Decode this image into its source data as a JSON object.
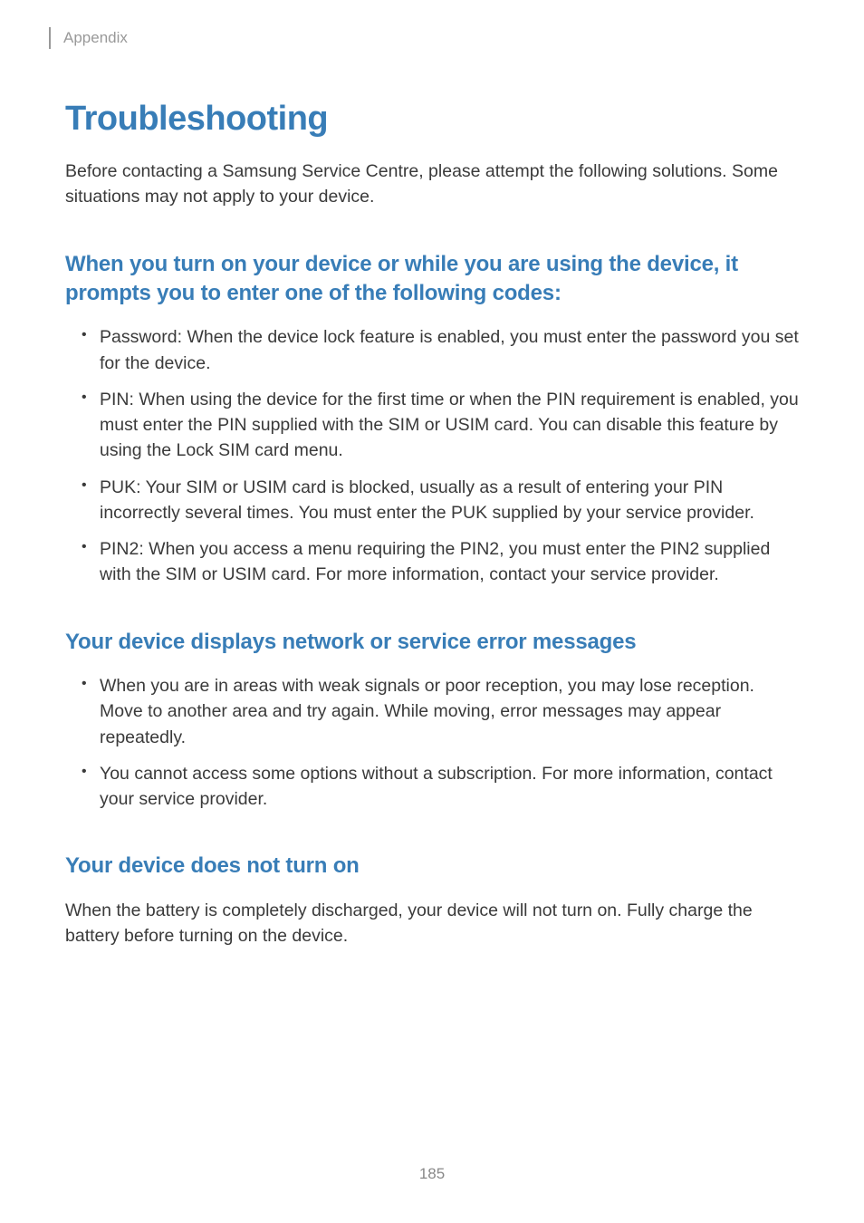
{
  "header": {
    "section_label": "Appendix"
  },
  "title": "Troubleshooting",
  "intro": "Before contacting a Samsung Service Centre, please attempt the following solutions. Some situations may not apply to your device.",
  "sections": [
    {
      "heading": "When you turn on your device or while you are using the device, it prompts you to enter one of the following codes:",
      "bullets": [
        "Password: When the device lock feature is enabled, you must enter the password you set for the device.",
        "PIN: When using the device for the first time or when the PIN requirement is enabled, you must enter the PIN supplied with the SIM or USIM card. You can disable this feature by using the Lock SIM card menu.",
        "PUK: Your SIM or USIM card is blocked, usually as a result of entering your PIN incorrectly several times. You must enter the PUK supplied by your service provider.",
        "PIN2: When you access a menu requiring the PIN2, you must enter the PIN2 supplied with the SIM or USIM card. For more information, contact your service provider."
      ]
    },
    {
      "heading": "Your device displays network or service error messages",
      "bullets": [
        "When you are in areas with weak signals or poor reception, you may lose reception. Move to another area and try again. While moving, error messages may appear repeatedly.",
        "You cannot access some options without a subscription. For more information, contact your service provider."
      ]
    },
    {
      "heading": "Your device does not turn on",
      "paragraph": "When the battery is completely discharged, your device will not turn on. Fully charge the battery before turning on the device."
    }
  ],
  "page_number": "185",
  "colors": {
    "heading_blue": "#387db7",
    "body_text": "#3a3a3a",
    "muted_text": "#999999",
    "page_num": "#888888",
    "background": "#ffffff"
  },
  "typography": {
    "h1_size": 38,
    "h2_size": 24,
    "body_size": 19.5,
    "header_size": 17,
    "pagenum_size": 17
  }
}
